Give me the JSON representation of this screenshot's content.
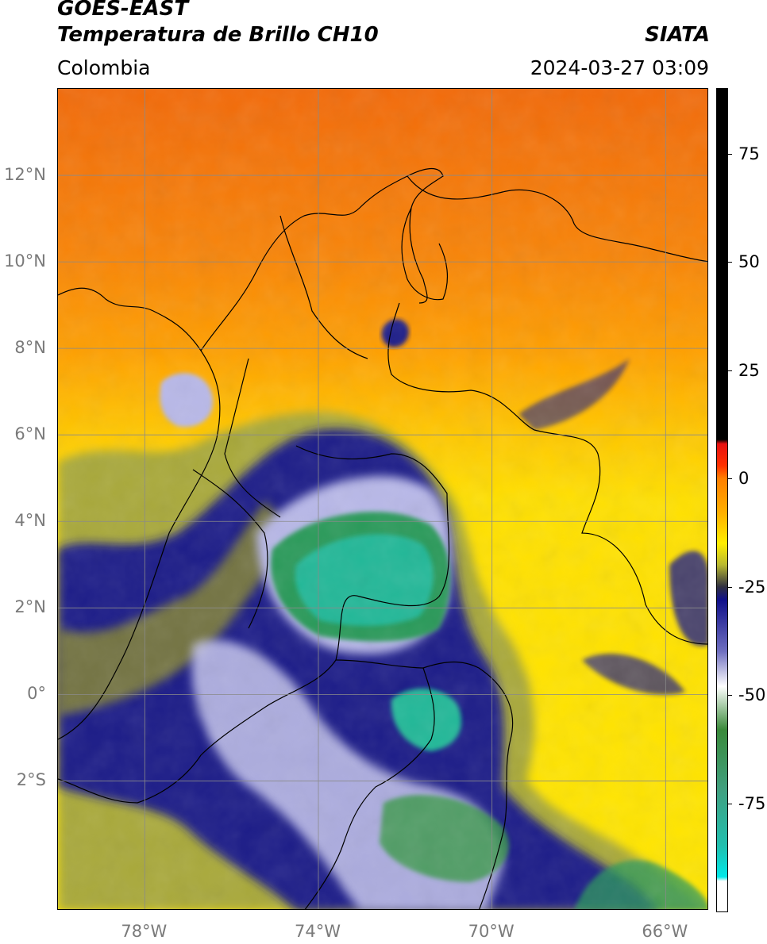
{
  "header": {
    "title_line1": "GOES-EAST",
    "title_line2": "Temperatura de Brillo CH10",
    "brand": "SIATA",
    "region": "Colombia",
    "timestamp": "2024-03-27 03:09"
  },
  "map": {
    "lon_range": [
      -80,
      -65
    ],
    "lat_range": [
      -5,
      14
    ],
    "lat_ticks": [
      {
        "label": "12°N",
        "lat": 12
      },
      {
        "label": "10°N",
        "lat": 10
      },
      {
        "label": "8°N",
        "lat": 8
      },
      {
        "label": "6°N",
        "lat": 6
      },
      {
        "label": "4°N",
        "lat": 4
      },
      {
        "label": "2°N",
        "lat": 2
      },
      {
        "label": "0°",
        "lat": 0
      },
      {
        "label": "2°S",
        "lat": -2
      }
    ],
    "lon_ticks": [
      {
        "label": "78°W",
        "lon": -78
      },
      {
        "label": "74°W",
        "lon": -74
      },
      {
        "label": "70°W",
        "lon": -70
      },
      {
        "label": "66°W",
        "lon": -66
      }
    ],
    "gridlines": true,
    "colors": {
      "warm_top": "#f26a0a",
      "warm_mid": "#ff9a00",
      "yellow": "#ffe000",
      "olive": "#a9a93a",
      "navy": "#1e1e88",
      "lavender": "#b8b8e8",
      "green": "#2a9a5a",
      "teal": "#20b898",
      "border": "#000000",
      "grid": "#8a8a8a"
    }
  },
  "colorbar": {
    "range": [
      -100,
      90
    ],
    "ticks": [
      {
        "label": "75",
        "value": 75
      },
      {
        "label": "50",
        "value": 50
      },
      {
        "label": "25",
        "value": 25
      },
      {
        "label": "0",
        "value": 0
      },
      {
        "label": "-25",
        "value": -25
      },
      {
        "label": "-50",
        "value": -50
      },
      {
        "label": "-75",
        "value": -75
      }
    ],
    "stops": [
      {
        "value": 90,
        "color": "#000000"
      },
      {
        "value": 9,
        "color": "#000000"
      },
      {
        "value": 8,
        "color": "#e81010"
      },
      {
        "value": 3,
        "color": "#ff3000"
      },
      {
        "value": 0,
        "color": "#ff7f00"
      },
      {
        "value": -8,
        "color": "#ffb000"
      },
      {
        "value": -15,
        "color": "#ffee00"
      },
      {
        "value": -20,
        "color": "#b8b830"
      },
      {
        "value": -25,
        "color": "#303040"
      },
      {
        "value": -28,
        "color": "#10108a"
      },
      {
        "value": -40,
        "color": "#7070c0"
      },
      {
        "value": -48,
        "color": "#ffffff"
      },
      {
        "value": -58,
        "color": "#3a8a3a"
      },
      {
        "value": -72,
        "color": "#40a080"
      },
      {
        "value": -85,
        "color": "#20c0b0"
      },
      {
        "value": -92,
        "color": "#00e8e8"
      },
      {
        "value": -93,
        "color": "#ffffff"
      },
      {
        "value": -100,
        "color": "#ffffff"
      }
    ]
  }
}
